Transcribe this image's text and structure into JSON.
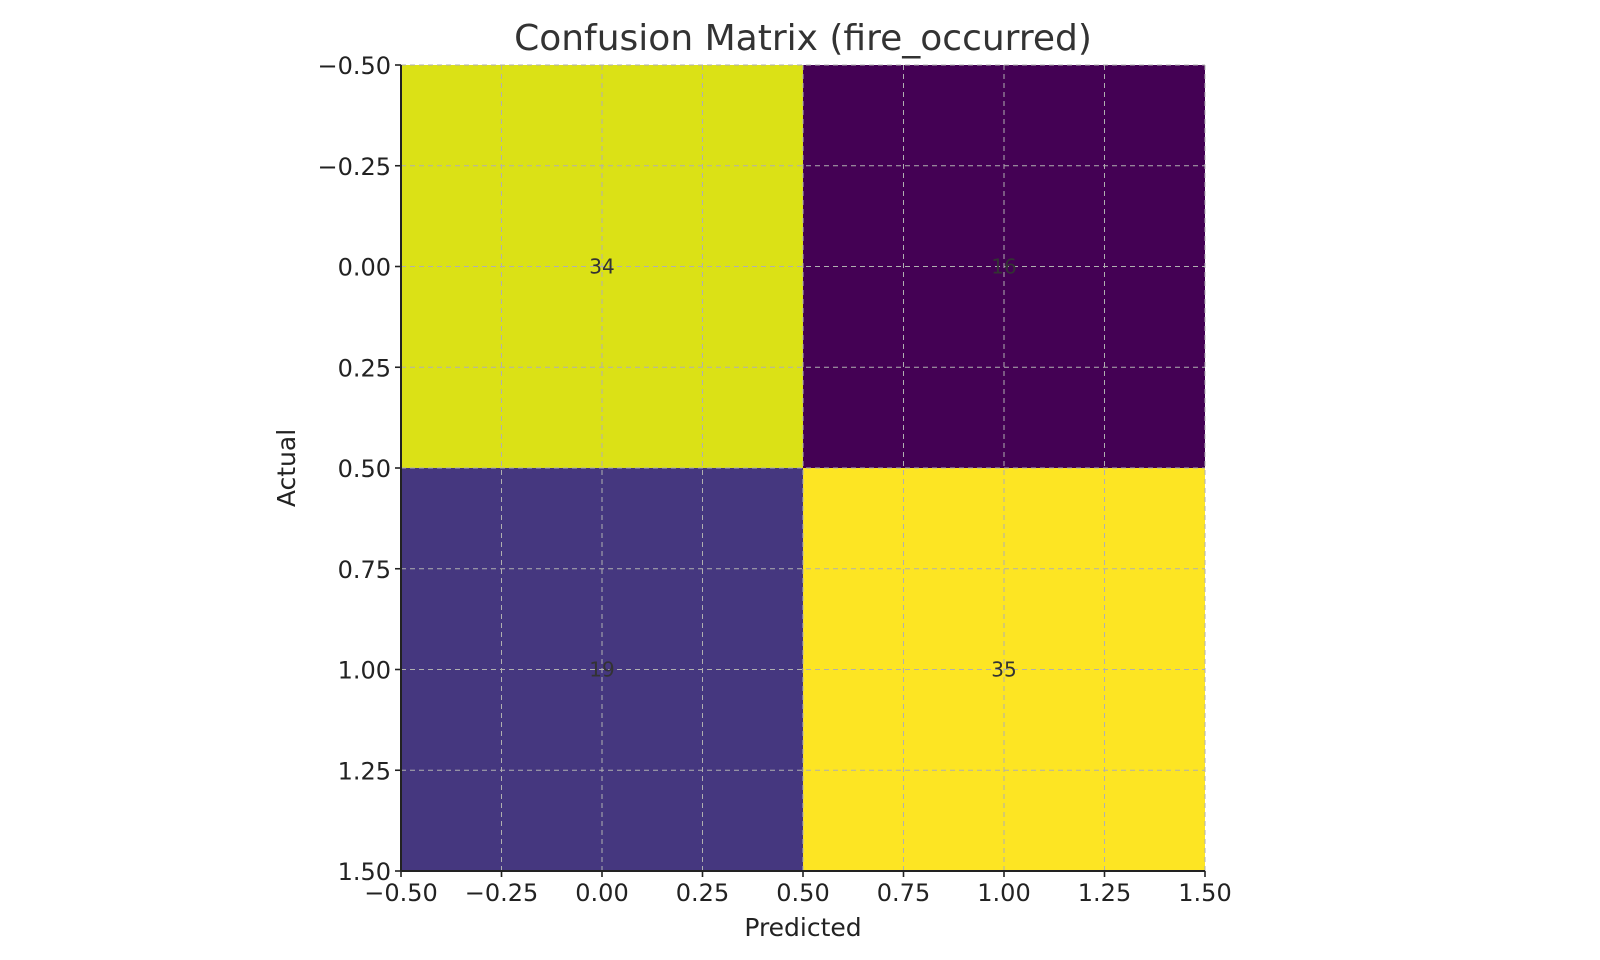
{
  "chart_data": {
    "type": "heatmap",
    "title": "Confusion Matrix (fire_occurred)",
    "xlabel": "Predicted",
    "ylabel": "Actual",
    "matrix": [
      [
        34,
        16
      ],
      [
        19,
        35
      ]
    ],
    "cell_labels": [
      [
        "34",
        "16"
      ],
      [
        "19",
        "35"
      ]
    ],
    "colormap": "viridis",
    "xlim": [
      -0.5,
      1.5
    ],
    "ylim": [
      1.5,
      -0.5
    ],
    "y_axis_inverted": true,
    "xticks": [
      -0.5,
      -0.25,
      0.0,
      0.25,
      0.5,
      0.75,
      1.0,
      1.25,
      1.5
    ],
    "xtick_labels": [
      "−0.50",
      "−0.25",
      "0.00",
      "0.25",
      "0.50",
      "0.75",
      "1.00",
      "1.25",
      "1.50"
    ],
    "yticks": [
      -0.5,
      -0.25,
      0.0,
      0.25,
      0.5,
      0.75,
      1.0,
      1.25,
      1.5
    ],
    "ytick_labels": [
      "−0.50",
      "−0.25",
      "0.00",
      "0.25",
      "0.50",
      "0.75",
      "1.00",
      "1.25",
      "1.50"
    ],
    "grid": true,
    "colors": {
      "cell_0_0": "#dbe116",
      "cell_0_1": "#440154",
      "cell_1_0": "#45377f",
      "cell_1_1": "#fde523"
    }
  }
}
